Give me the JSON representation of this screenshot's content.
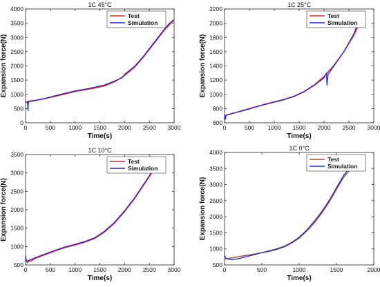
{
  "chart_data": [
    {
      "type": "line",
      "title": "1C  45°C",
      "xlabel": "Time(s)",
      "ylabel": "Expansion force(N)",
      "xlim": [
        0,
        3000
      ],
      "ylim": [
        0,
        4000
      ],
      "xticks": [
        0,
        500,
        1000,
        1500,
        2000,
        2500,
        3000
      ],
      "yticks": [
        0,
        500,
        1000,
        1500,
        2000,
        2500,
        3000,
        3500,
        4000
      ],
      "legend": "top-right",
      "series": [
        {
          "name": "Test",
          "color": "#e8232a",
          "x": [
            0,
            200,
            400,
            600,
            800,
            1000,
            1200,
            1400,
            1600,
            1800,
            2000,
            2200,
            2400,
            2600,
            2800,
            2990
          ],
          "y": [
            720,
            780,
            850,
            930,
            1010,
            1100,
            1160,
            1220,
            1300,
            1440,
            1660,
            1950,
            2350,
            2800,
            3250,
            3600
          ]
        },
        {
          "name": "Simulation",
          "color": "#1f24d4",
          "x": [
            0,
            40,
            50,
            60,
            200,
            400,
            600,
            800,
            1000,
            1200,
            1400,
            1600,
            1800,
            1950,
            2000,
            2200,
            2400,
            2600,
            2800,
            2900,
            2990
          ],
          "y": [
            740,
            730,
            430,
            760,
            790,
            860,
            950,
            1040,
            1120,
            1180,
            1250,
            1330,
            1470,
            1580,
            1700,
            1980,
            2380,
            2830,
            3280,
            3480,
            3620
          ]
        }
      ]
    },
    {
      "type": "line",
      "title": "1C  25°C",
      "xlabel": "Time(s)",
      "ylabel": "Expansion force(N)",
      "xlim": [
        0,
        3000
      ],
      "ylim": [
        600,
        2200
      ],
      "xticks": [
        0,
        500,
        1000,
        1500,
        2000,
        2500,
        3000
      ],
      "yticks": [
        600,
        800,
        1000,
        1200,
        1400,
        1600,
        1800,
        2000,
        2200
      ],
      "legend": "top-right",
      "series": [
        {
          "name": "Test",
          "color": "#e8232a",
          "x": [
            0,
            200,
            400,
            600,
            800,
            1000,
            1200,
            1400,
            1600,
            1800,
            2000,
            2200,
            2400,
            2600,
            2680
          ],
          "y": [
            700,
            740,
            780,
            820,
            860,
            895,
            930,
            975,
            1040,
            1130,
            1250,
            1410,
            1600,
            1830,
            1950
          ]
        },
        {
          "name": "Simulation",
          "color": "#1f24d4",
          "x": [
            0,
            10,
            20,
            30,
            200,
            400,
            600,
            800,
            1000,
            1200,
            1400,
            1600,
            1800,
            2000,
            2050,
            2060,
            2080,
            2200,
            2400,
            2600,
            2680
          ],
          "y": [
            640,
            700,
            650,
            710,
            740,
            775,
            815,
            855,
            890,
            925,
            970,
            1035,
            1125,
            1230,
            1300,
            1130,
            1280,
            1400,
            1600,
            1850,
            2000
          ]
        }
      ]
    },
    {
      "type": "line",
      "title": "1C  10°C",
      "xlabel": "Time(s)",
      "ylabel": "Expansion force(N)",
      "xlim": [
        0,
        3000
      ],
      "ylim": [
        500,
        3500
      ],
      "xticks": [
        0,
        500,
        1000,
        1500,
        2000,
        2500,
        3000
      ],
      "yticks": [
        500,
        1000,
        1500,
        2000,
        2500,
        3000,
        3500
      ],
      "legend": "top-right",
      "series": [
        {
          "name": "Test",
          "color": "#e8232a",
          "x": [
            0,
            100,
            200,
            400,
            600,
            800,
            1000,
            1200,
            1400,
            1600,
            1800,
            2000,
            2200,
            2400,
            2600,
            2700
          ],
          "y": [
            620,
            600,
            680,
            780,
            880,
            970,
            1040,
            1120,
            1220,
            1400,
            1640,
            1950,
            2300,
            2700,
            3100,
            3330
          ]
        },
        {
          "name": "Simulation",
          "color": "#1f24d4",
          "x": [
            0,
            20,
            40,
            60,
            100,
            200,
            400,
            600,
            800,
            1000,
            1200,
            1400,
            1600,
            1800,
            2000,
            2200,
            2400,
            2600,
            2700
          ],
          "y": [
            750,
            600,
            560,
            620,
            640,
            700,
            800,
            900,
            990,
            1060,
            1140,
            1240,
            1420,
            1660,
            1970,
            2320,
            2720,
            3130,
            3380
          ]
        }
      ]
    },
    {
      "type": "line",
      "title": "1C  0°C",
      "xlabel": "Time(s)",
      "ylabel": "Expansion force(N)",
      "xlim": [
        0,
        2000
      ],
      "ylim": [
        500,
        4000
      ],
      "xticks": [
        0,
        500,
        1000,
        1500,
        2000
      ],
      "yticks": [
        500,
        1000,
        1500,
        2000,
        2500,
        3000,
        3500,
        4000
      ],
      "legend": "top-right",
      "series": [
        {
          "name": "Test",
          "color": "#a0522d",
          "x": [
            0,
            100,
            200,
            300,
            400,
            500,
            600,
            700,
            800,
            900,
            1000,
            1100,
            1200,
            1300,
            1400,
            1500,
            1600,
            1700,
            1750
          ],
          "y": [
            680,
            720,
            760,
            800,
            840,
            880,
            920,
            980,
            1060,
            1180,
            1330,
            1550,
            1800,
            2100,
            2450,
            2850,
            3250,
            3500,
            3600
          ]
        },
        {
          "name": "Simulation",
          "color": "#1f24d4",
          "x": [
            0,
            20,
            40,
            100,
            200,
            300,
            400,
            500,
            600,
            700,
            800,
            900,
            1000,
            1100,
            1200,
            1300,
            1400,
            1500,
            1600,
            1700,
            1750
          ],
          "y": [
            800,
            700,
            690,
            660,
            700,
            760,
            820,
            880,
            940,
            1000,
            1080,
            1200,
            1360,
            1580,
            1850,
            2150,
            2500,
            2900,
            3300,
            3600,
            3700
          ]
        }
      ]
    }
  ]
}
